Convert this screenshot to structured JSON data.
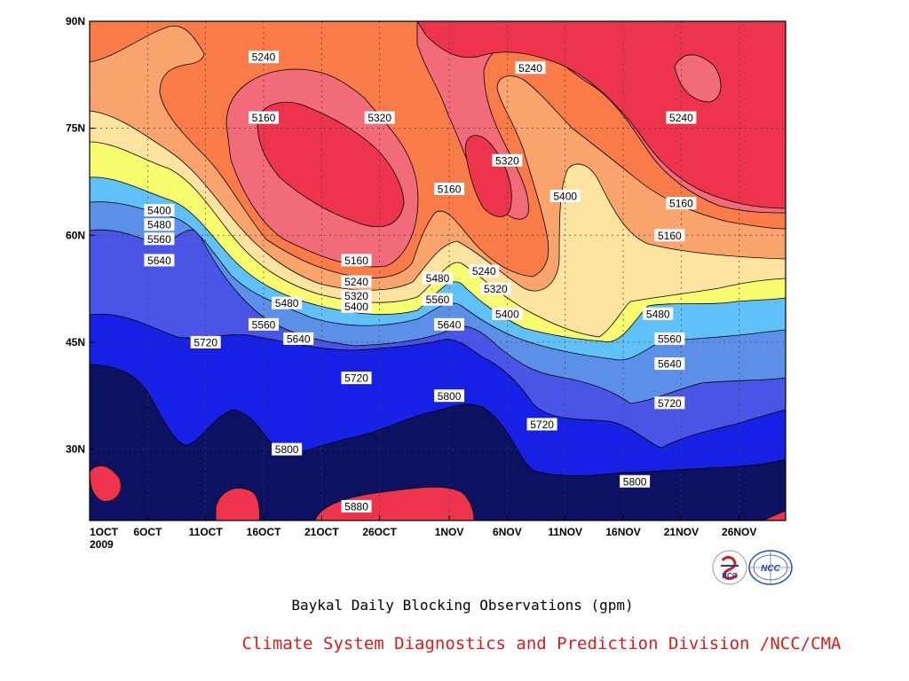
{
  "chart_data": {
    "type": "heatmap",
    "subtype": "filled-contour (time-latitude Hovmoller)",
    "title": "Baykal Daily Blocking Observations (gpm)",
    "credit": "Climate System Diagnostics and Prediction Division /NCC/CMA",
    "xlabel": "",
    "ylabel": "",
    "x_ticks": [
      "1OCT",
      "6OCT",
      "11OCT",
      "16OCT",
      "21OCT",
      "26OCT",
      "1NOV",
      "6NOV",
      "11NOV",
      "16NOV",
      "21NOV",
      "26NOV"
    ],
    "x_tick_year": "2009",
    "xlim": [
      "2009-10-01",
      "2009-11-30"
    ],
    "y_ticks": [
      "30N",
      "45N",
      "60N",
      "75N",
      "90N"
    ],
    "ylim": [
      20,
      90
    ],
    "grid": true,
    "levels": [
      5160,
      5240,
      5320,
      5400,
      5480,
      5560,
      5640,
      5720,
      5800,
      5880
    ],
    "band_colors": [
      "#0c1162",
      "#1721e6",
      "#4a55e8",
      "#5b8fe8",
      "#60c0f8",
      "#f8fd70",
      "#fde3a0",
      "#f9a46c",
      "#f97b47",
      "#f26b7b",
      "#ee344d"
    ],
    "contour_labels": [
      {
        "label": "5240",
        "date": "2009-10-16",
        "lat": 85
      },
      {
        "label": "5160",
        "date": "2009-10-16",
        "lat": 76.5
      },
      {
        "label": "5320",
        "date": "2009-10-26",
        "lat": 76.5
      },
      {
        "label": "5240",
        "date": "2009-11-08",
        "lat": 83.5
      },
      {
        "label": "5240",
        "date": "2009-11-21",
        "lat": 76.5
      },
      {
        "label": "5320",
        "date": "2009-11-06",
        "lat": 70.5
      },
      {
        "label": "5160",
        "date": "2009-11-01",
        "lat": 66.5
      },
      {
        "label": "5400",
        "date": "2009-11-11",
        "lat": 65.5
      },
      {
        "label": "5160",
        "date": "2009-11-21",
        "lat": 64.5
      },
      {
        "label": "5160",
        "date": "2009-11-20",
        "lat": 60
      },
      {
        "label": "5400",
        "date": "2009-10-07",
        "lat": 63.5
      },
      {
        "label": "5480",
        "date": "2009-10-07",
        "lat": 61.5
      },
      {
        "label": "5560",
        "date": "2009-10-07",
        "lat": 59.5
      },
      {
        "label": "5640",
        "date": "2009-10-07",
        "lat": 56.5
      },
      {
        "label": "5160",
        "date": "2009-10-24",
        "lat": 56.5
      },
      {
        "label": "5240",
        "date": "2009-10-24",
        "lat": 53.5
      },
      {
        "label": "5480",
        "date": "2009-10-31",
        "lat": 54
      },
      {
        "label": "5240",
        "date": "2009-11-04",
        "lat": 55
      },
      {
        "label": "5320",
        "date": "2009-10-24",
        "lat": 51.5
      },
      {
        "label": "5560",
        "date": "2009-10-31",
        "lat": 51
      },
      {
        "label": "5320",
        "date": "2009-11-05",
        "lat": 52.5
      },
      {
        "label": "5400",
        "date": "2009-10-24",
        "lat": 50
      },
      {
        "label": "5480",
        "date": "2009-10-18",
        "lat": 50.5
      },
      {
        "label": "5400",
        "date": "2009-11-06",
        "lat": 49
      },
      {
        "label": "5480",
        "date": "2009-11-19",
        "lat": 49
      },
      {
        "label": "5560",
        "date": "2009-10-16",
        "lat": 47.5
      },
      {
        "label": "5640",
        "date": "2009-11-01",
        "lat": 47.5
      },
      {
        "label": "5640",
        "date": "2009-10-19",
        "lat": 45.5
      },
      {
        "label": "5560",
        "date": "2009-11-20",
        "lat": 45.5
      },
      {
        "label": "5720",
        "date": "2009-10-11",
        "lat": 45
      },
      {
        "label": "5640",
        "date": "2009-11-20",
        "lat": 42
      },
      {
        "label": "5720",
        "date": "2009-10-24",
        "lat": 40
      },
      {
        "label": "5800",
        "date": "2009-11-01",
        "lat": 37.5
      },
      {
        "label": "5720",
        "date": "2009-11-09",
        "lat": 33.5
      },
      {
        "label": "5720",
        "date": "2009-11-20",
        "lat": 36.5
      },
      {
        "label": "5800",
        "date": "2009-10-18",
        "lat": 30
      },
      {
        "label": "5800",
        "date": "2009-11-17",
        "lat": 25.5
      },
      {
        "label": "5880",
        "date": "2009-10-24",
        "lat": 22
      }
    ]
  }
}
